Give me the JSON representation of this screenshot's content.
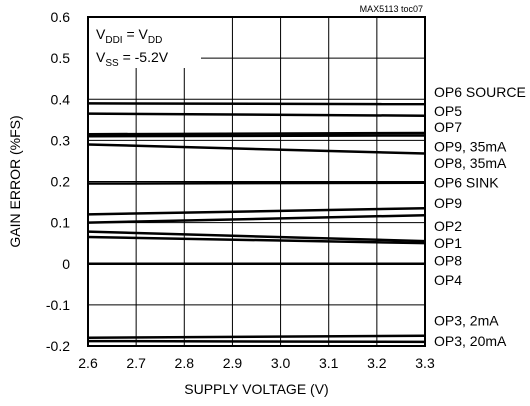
{
  "chart_data": {
    "type": "line",
    "xlabel": "SUPPLY VOLTAGE (V)",
    "ylabel": "GAIN ERROR (%FS)",
    "xlim": [
      2.6,
      3.3
    ],
    "ylim": [
      -0.2,
      0.6
    ],
    "x_ticks": [
      "2.6",
      "2.7",
      "2.8",
      "2.9",
      "3.0",
      "3.1",
      "3.2",
      "3.3"
    ],
    "y_ticks": [
      "-0.2",
      "-0.1",
      "0",
      "0.1",
      "0.2",
      "0.3",
      "0.4",
      "0.5",
      "0.6"
    ],
    "grid": true,
    "x": [
      2.6,
      3.3
    ],
    "reference": "MAX5113 toc07",
    "annotation": {
      "line1": {
        "main": "V",
        "sub1": "DDI",
        "mid": " = V",
        "sub2": "DD"
      },
      "line2": {
        "main": "V",
        "sub1": "SS",
        "mid": " = -5.2V"
      }
    },
    "series": [
      {
        "name": "OP6 SOURCE",
        "values": [
          0.39,
          0.388
        ],
        "label_y": 0.418
      },
      {
        "name": "OP5",
        "values": [
          0.365,
          0.36
        ],
        "label_y": 0.372
      },
      {
        "name": "OP7",
        "values": [
          0.315,
          0.318
        ],
        "label_y": 0.332
      },
      {
        "name": "OP9, 35mA",
        "values": [
          0.31,
          0.312
        ],
        "label_y": 0.285
      },
      {
        "name": "OP8, 35mA",
        "values": [
          0.29,
          0.268
        ],
        "label_y": 0.245
      },
      {
        "name": "OP6 SINK",
        "values": [
          0.195,
          0.197
        ],
        "label_y": 0.197
      },
      {
        "name": "OP9",
        "values": [
          0.12,
          0.135
        ],
        "label_y": 0.148
      },
      {
        "name": "OP2",
        "values": [
          0.1,
          0.118
        ],
        "label_y": 0.092
      },
      {
        "name": "OP1",
        "values": [
          0.078,
          0.055
        ],
        "label_y": 0.05
      },
      {
        "name": "OP8",
        "values": [
          0.065,
          0.05
        ],
        "label_y": 0.008
      },
      {
        "name": "OP4",
        "values": [
          0.0,
          0.0
        ],
        "label_y": -0.04
      },
      {
        "name": "OP3, 2mA",
        "values": [
          -0.18,
          -0.175
        ],
        "label_y": -0.138
      },
      {
        "name": "OP3, 20mA",
        "values": [
          -0.188,
          -0.19
        ],
        "label_y": -0.188
      }
    ]
  }
}
